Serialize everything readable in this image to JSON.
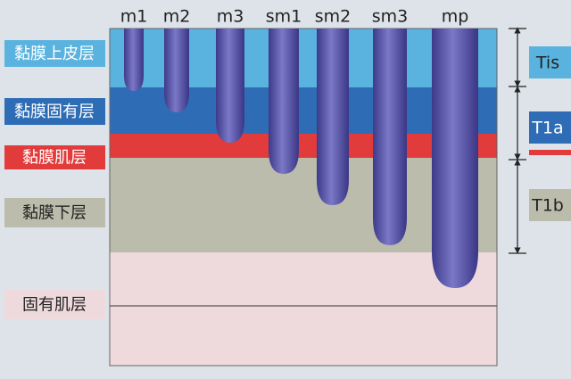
{
  "layers": [
    "黏膜上皮层",
    "黏膜固有层",
    "黏膜肌层",
    "黏膜下层",
    "固有肌层"
  ],
  "depths": [
    "m1",
    "m2",
    "m3",
    "sm1",
    "sm2",
    "sm3",
    "mp"
  ],
  "stages": [
    "Tis",
    "T1a",
    "T1b"
  ]
}
